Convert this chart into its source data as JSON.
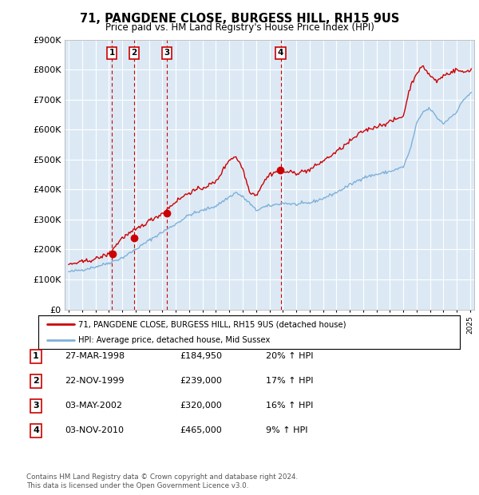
{
  "title": "71, PANGDENE CLOSE, BURGESS HILL, RH15 9US",
  "subtitle": "Price paid vs. HM Land Registry's House Price Index (HPI)",
  "legend_line1": "71, PANGDENE CLOSE, BURGESS HILL, RH15 9US (detached house)",
  "legend_line2": "HPI: Average price, detached house, Mid Sussex",
  "footer1": "Contains HM Land Registry data © Crown copyright and database right 2024.",
  "footer2": "This data is licensed under the Open Government Licence v3.0.",
  "sales": [
    {
      "num": 1,
      "date": "27-MAR-1998",
      "price": 184950,
      "hpi_pct": "20% ↑ HPI",
      "year": 1998.22
    },
    {
      "num": 2,
      "date": "22-NOV-1999",
      "price": 239000,
      "hpi_pct": "17% ↑ HPI",
      "year": 1999.89
    },
    {
      "num": 3,
      "date": "03-MAY-2002",
      "price": 320000,
      "hpi_pct": "16% ↑ HPI",
      "year": 2002.33
    },
    {
      "num": 4,
      "date": "03-NOV-2010",
      "price": 465000,
      "hpi_pct": "9% ↑ HPI",
      "year": 2010.84
    }
  ],
  "table_rows": [
    [
      "1",
      "27-MAR-1998",
      "£184,950",
      "20% ↑ HPI"
    ],
    [
      "2",
      "22-NOV-1999",
      "£239,000",
      "17% ↑ HPI"
    ],
    [
      "3",
      "03-MAY-2002",
      "£320,000",
      "16% ↑ HPI"
    ],
    [
      "4",
      "03-NOV-2010",
      "£465,000",
      "9% ↑ HPI"
    ]
  ],
  "ylim": [
    0,
    900000
  ],
  "xlim_start": 1994.7,
  "xlim_end": 2025.3,
  "bg_color": "#dce9f5",
  "red_color": "#cc0000",
  "blue_color": "#7fb0d8",
  "grid_color": "#ffffff",
  "vline_color": "#cc0000",
  "hpi_anchors_x": [
    1995,
    1996,
    1997,
    1998,
    1999,
    2000,
    2001,
    2002,
    2003,
    2004,
    2005,
    2006,
    2007,
    2007.5,
    2008,
    2008.5,
    2009,
    2009.5,
    2010,
    2011,
    2012,
    2013,
    2014,
    2015,
    2016,
    2017,
    2018,
    2019,
    2020,
    2020.5,
    2021,
    2021.5,
    2022,
    2022.5,
    2023,
    2023.5,
    2024,
    2024.5,
    2025
  ],
  "hpi_anchors_y": [
    125000,
    132000,
    142000,
    155000,
    172000,
    200000,
    230000,
    258000,
    285000,
    315000,
    330000,
    345000,
    375000,
    390000,
    375000,
    355000,
    330000,
    340000,
    345000,
    355000,
    350000,
    355000,
    370000,
    390000,
    415000,
    440000,
    450000,
    460000,
    475000,
    530000,
    620000,
    660000,
    670000,
    640000,
    620000,
    640000,
    660000,
    700000,
    720000
  ],
  "red_anchors_x": [
    1995,
    1996,
    1997,
    1998,
    1999,
    2000,
    2001,
    2002,
    2003,
    2004,
    2005,
    2006,
    2007,
    2007.5,
    2008,
    2008.5,
    2009,
    2009.5,
    2010,
    2010.84,
    2011,
    2012,
    2013,
    2014,
    2015,
    2016,
    2017,
    2018,
    2019,
    2020,
    2020.5,
    2021,
    2021.5,
    2022,
    2022.5,
    2023,
    2023.5,
    2024,
    2024.5,
    2025
  ],
  "red_anchors_y": [
    150000,
    158000,
    168000,
    184950,
    239000,
    265000,
    295000,
    320000,
    360000,
    390000,
    405000,
    425000,
    500000,
    510000,
    470000,
    395000,
    380000,
    420000,
    450000,
    465000,
    460000,
    455000,
    465000,
    495000,
    525000,
    560000,
    595000,
    610000,
    625000,
    645000,
    740000,
    790000,
    810000,
    780000,
    760000,
    780000,
    790000,
    800000,
    790000,
    800000
  ]
}
